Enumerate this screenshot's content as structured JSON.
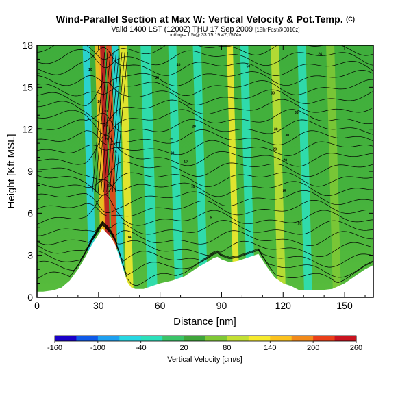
{
  "header": {
    "title": "Wind-Parallel Section at Max W: Vertical Velocity & Pot.Temp.",
    "title_tag": "(C)",
    "valid_line": "Valid 1400 LST (1200Z) THU 17 Sep 2009",
    "valid_tag": "[18hrFcst@0010z]",
    "sub_line": "bot/top= 1.5/@ 33.75,19.47,1574m"
  },
  "chart_data": {
    "type": "heatmap",
    "xlabel": "Distance [nm]",
    "ylabel": "Height [Kft MSL]",
    "xlim": [
      0,
      164
    ],
    "ylim": [
      0,
      18
    ],
    "xticks": [
      "0",
      "30",
      "60",
      "90",
      "120",
      "150"
    ],
    "yticks": [
      "0",
      "3",
      "6",
      "9",
      "12",
      "15",
      "18"
    ],
    "colorbar_label": "Vertical Velocity [cm/s]",
    "colorbar_ticks": [
      "-160",
      "-100",
      "-40",
      "20",
      "80",
      "140",
      "200",
      "260"
    ],
    "colorbar_range": [
      -160,
      260
    ],
    "colorbar_colors": [
      "#1a00c8",
      "#0f5ae8",
      "#1ea0f0",
      "#27d7e2",
      "#2ce0bb",
      "#3ac468",
      "#3fa53a",
      "#7fc835",
      "#c3e033",
      "#f6ea2d",
      "#fbc21e",
      "#f28a1a",
      "#ea3f19",
      "#c9131f"
    ],
    "terrain": {
      "x": [
        0,
        3,
        8,
        12,
        16,
        20,
        24,
        27,
        30,
        32,
        34,
        36,
        38,
        41,
        44,
        46,
        48,
        52,
        56,
        60,
        66,
        72,
        78,
        84,
        86,
        88,
        90,
        94,
        98,
        104,
        108,
        112,
        116,
        120,
        124,
        128,
        132,
        138,
        144,
        150,
        156,
        160,
        164
      ],
      "y": [
        0.4,
        0.4,
        0.5,
        0.7,
        1.2,
        2.0,
        3.0,
        3.8,
        4.5,
        4.9,
        4.6,
        4.3,
        3.8,
        2.5,
        1.1,
        0.7,
        0.6,
        0.6,
        0.8,
        1.0,
        1.2,
        1.5,
        2.1,
        2.6,
        2.8,
        2.9,
        2.7,
        2.5,
        2.6,
        2.9,
        3.1,
        2.2,
        1.4,
        1.0,
        0.8,
        0.5,
        0.5,
        0.5,
        0.6,
        1.0,
        1.6,
        2.0,
        2.3
      ]
    },
    "velocity_columns": [
      {
        "x": 33.5,
        "width": 3.0,
        "w": 260
      },
      {
        "x": 37.0,
        "width": 2.5,
        "w": 200
      },
      {
        "x": 31.5,
        "width": 2.5,
        "w": 150
      },
      {
        "x": 44.0,
        "width": 3.5,
        "w": 110
      },
      {
        "x": 26.0,
        "width": 3.5,
        "w": -60
      },
      {
        "x": 40.0,
        "width": 3.0,
        "w": -45
      },
      {
        "x": 55.0,
        "width": 5.0,
        "w": -35
      },
      {
        "x": 68.0,
        "width": 4.0,
        "w": -40
      },
      {
        "x": 80.0,
        "width": 4.0,
        "w": -20
      },
      {
        "x": 96.0,
        "width": 3.0,
        "w": 110
      },
      {
        "x": 103.0,
        "width": 4.0,
        "w": -40
      },
      {
        "x": 118.0,
        "width": 4.0,
        "w": 80
      },
      {
        "x": 131.0,
        "width": 4.0,
        "w": -30
      },
      {
        "x": 145.0,
        "width": 4.0,
        "w": 60
      }
    ],
    "pot_temp_labels": [
      {
        "x": 26.0,
        "y": 16.3,
        "text": "10"
      },
      {
        "x": 30.5,
        "y": 14.0,
        "text": "20"
      },
      {
        "x": 33.5,
        "y": 13.3,
        "text": "30"
      },
      {
        "x": 33.5,
        "y": 12.3,
        "text": "25"
      },
      {
        "x": 34.0,
        "y": 11.3,
        "text": "20"
      },
      {
        "x": 38.0,
        "y": 10.4,
        "text": "15"
      },
      {
        "x": 31.0,
        "y": 8.3,
        "text": "30"
      },
      {
        "x": 35.5,
        "y": 8.0,
        "text": "15"
      },
      {
        "x": 58.5,
        "y": 15.7,
        "text": "30"
      },
      {
        "x": 69.0,
        "y": 16.6,
        "text": "40"
      },
      {
        "x": 74.0,
        "y": 13.8,
        "text": "35"
      },
      {
        "x": 76.5,
        "y": 12.2,
        "text": "20"
      },
      {
        "x": 65.5,
        "y": 11.3,
        "text": "35"
      },
      {
        "x": 66.0,
        "y": 10.3,
        "text": "20"
      },
      {
        "x": 72.5,
        "y": 9.7,
        "text": "10"
      },
      {
        "x": 76.0,
        "y": 7.9,
        "text": "10"
      },
      {
        "x": 85.0,
        "y": 5.7,
        "text": "5"
      },
      {
        "x": 103.0,
        "y": 16.5,
        "text": "50"
      },
      {
        "x": 115.0,
        "y": 14.6,
        "text": "30"
      },
      {
        "x": 126.5,
        "y": 13.2,
        "text": "35"
      },
      {
        "x": 116.5,
        "y": 12.0,
        "text": "30"
      },
      {
        "x": 122.0,
        "y": 11.6,
        "text": "30"
      },
      {
        "x": 116.0,
        "y": 10.6,
        "text": "20"
      },
      {
        "x": 121.0,
        "y": 9.8,
        "text": "20"
      },
      {
        "x": 120.5,
        "y": 7.6,
        "text": "15"
      },
      {
        "x": 128.0,
        "y": 5.3,
        "text": "15"
      },
      {
        "x": 138.0,
        "y": 17.4,
        "text": "24"
      },
      {
        "x": 45.0,
        "y": 4.3,
        "text": "14"
      }
    ]
  }
}
